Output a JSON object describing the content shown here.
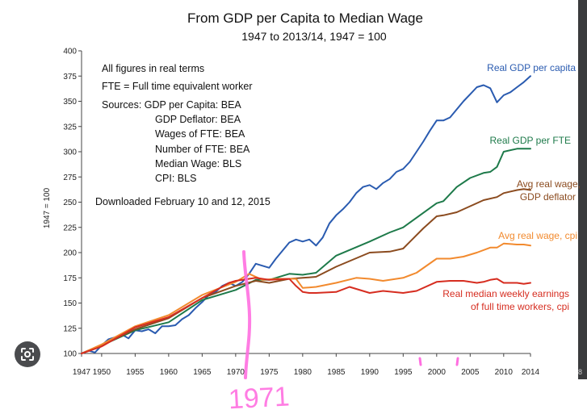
{
  "chart_data": {
    "type": "line",
    "title": "From GDP per Capita to Median Wage",
    "subtitle": "1947 to 2013/14, 1947 = 100",
    "ylabel": "1947 = 100",
    "xlabel": "",
    "xlim": [
      1947,
      2014
    ],
    "ylim": [
      100,
      400
    ],
    "x_ticks": [
      "1947",
      "1950",
      "1955",
      "1960",
      "1965",
      "1970",
      "1975",
      "1980",
      "1985",
      "1990",
      "1995",
      "2000",
      "2005",
      "2010",
      "2014"
    ],
    "y_ticks": [
      "100",
      "125",
      "150",
      "175",
      "200",
      "225",
      "250",
      "275",
      "300",
      "325",
      "350",
      "375",
      "400"
    ],
    "grid": false,
    "legend": "direct labels at right end of each line",
    "notes": [
      "All figures in real terms",
      "FTE = Full time equivalent worker",
      "Sources:  GDP per Capita:  BEA",
      "GDP Deflator:  BEA",
      "Wages of FTE:  BEA",
      "Number of FTE:  BEA",
      "Median Wage:  BLS",
      "CPI:  BLS",
      "Downloaded February 10 and 12, 2015"
    ],
    "series": [
      {
        "name": "Real GDP per capita",
        "color": "#2a5bb0",
        "x": [
          1947,
          1948,
          1949,
          1950,
          1951,
          1952,
          1953,
          1954,
          1955,
          1956,
          1957,
          1958,
          1959,
          1960,
          1961,
          1962,
          1963,
          1964,
          1965,
          1966,
          1967,
          1968,
          1969,
          1970,
          1971,
          1972,
          1973,
          1974,
          1975,
          1976,
          1977,
          1978,
          1979,
          1980,
          1981,
          1982,
          1983,
          1984,
          1985,
          1986,
          1987,
          1988,
          1989,
          1990,
          1991,
          1992,
          1993,
          1994,
          1995,
          1996,
          1997,
          1998,
          1999,
          2000,
          2001,
          2002,
          2003,
          2004,
          2005,
          2006,
          2007,
          2008,
          2009,
          2010,
          2011,
          2012,
          2013,
          2014
        ],
        "y": [
          100,
          103,
          101,
          108,
          114,
          116,
          119,
          115,
          123,
          122,
          124,
          120,
          127,
          127,
          128,
          134,
          138,
          145,
          151,
          158,
          161,
          167,
          170,
          167,
          171,
          179,
          189,
          187,
          185,
          194,
          202,
          210,
          213,
          211,
          213,
          207,
          215,
          229,
          237,
          243,
          250,
          259,
          265,
          267,
          263,
          269,
          273,
          280,
          283,
          290,
          300,
          310,
          321,
          331,
          331,
          334,
          342,
          350,
          357,
          364,
          366,
          363,
          349,
          356,
          359,
          364,
          369,
          375
        ]
      },
      {
        "name": "Real GDP per FTE",
        "color": "#1e7a4a",
        "x": [
          1947,
          1950,
          1955,
          1960,
          1965,
          1970,
          1973,
          1975,
          1978,
          1980,
          1982,
          1985,
          1990,
          1993,
          1995,
          2000,
          2001,
          2003,
          2005,
          2007,
          2008,
          2009,
          2010,
          2012,
          2013,
          2014
        ],
        "y": [
          100,
          108,
          123,
          131,
          153,
          163,
          173,
          173,
          179,
          178,
          180,
          197,
          211,
          220,
          225,
          249,
          251,
          265,
          274,
          279,
          280,
          285,
          300,
          303,
          303,
          303
        ]
      },
      {
        "name": "Avg real wage, GDP deflator",
        "color": "#8b4b1f",
        "x": [
          1947,
          1950,
          1955,
          1960,
          1965,
          1970,
          1973,
          1975,
          1978,
          1980,
          1982,
          1985,
          1990,
          1993,
          1995,
          1998,
          2000,
          2001,
          2003,
          2005,
          2007,
          2009,
          2010,
          2012,
          2013,
          2014
        ],
        "y": [
          100,
          108,
          124,
          135,
          155,
          167,
          172,
          170,
          174,
          175,
          176,
          186,
          200,
          201,
          204,
          224,
          236,
          237,
          240,
          246,
          252,
          255,
          259,
          262,
          263,
          262
        ]
      },
      {
        "name": "Avg real wage, cpi",
        "color": "#f28a2e",
        "x": [
          1947,
          1950,
          1955,
          1960,
          1965,
          1970,
          1972,
          1974,
          1976,
          1979,
          1980,
          1982,
          1985,
          1988,
          1990,
          1992,
          1995,
          1997,
          2000,
          2002,
          2004,
          2006,
          2008,
          2009,
          2010,
          2012,
          2013,
          2014
        ],
        "y": [
          100,
          109,
          127,
          138,
          158,
          171,
          179,
          173,
          174,
          174,
          165,
          166,
          170,
          175,
          174,
          172,
          175,
          180,
          194,
          194,
          196,
          200,
          205,
          205,
          209,
          208,
          208,
          207
        ]
      },
      {
        "name": "Real median weekly earnings of full time workers, cpi",
        "color": "#d62d20",
        "x": [
          1947,
          1950,
          1955,
          1960,
          1965,
          1969,
          1970,
          1972,
          1973,
          1975,
          1978,
          1979,
          1980,
          1981,
          1982,
          1985,
          1987,
          1990,
          1992,
          1995,
          1997,
          2000,
          2002,
          2004,
          2006,
          2007,
          2008,
          2009,
          2010,
          2012,
          2013,
          2014
        ],
        "y": [
          100,
          107,
          126,
          136,
          155,
          170,
          172,
          174,
          175,
          173,
          174,
          167,
          161,
          160,
          160,
          161,
          166,
          160,
          162,
          160,
          162,
          171,
          172,
          172,
          170,
          171,
          173,
          174,
          170,
          170,
          169,
          170
        ]
      }
    ]
  },
  "annotations": {
    "handwritten_year": "1971"
  },
  "ui": {
    "lens_icon": "google-lens-icon",
    "right_edge_text": "8"
  }
}
